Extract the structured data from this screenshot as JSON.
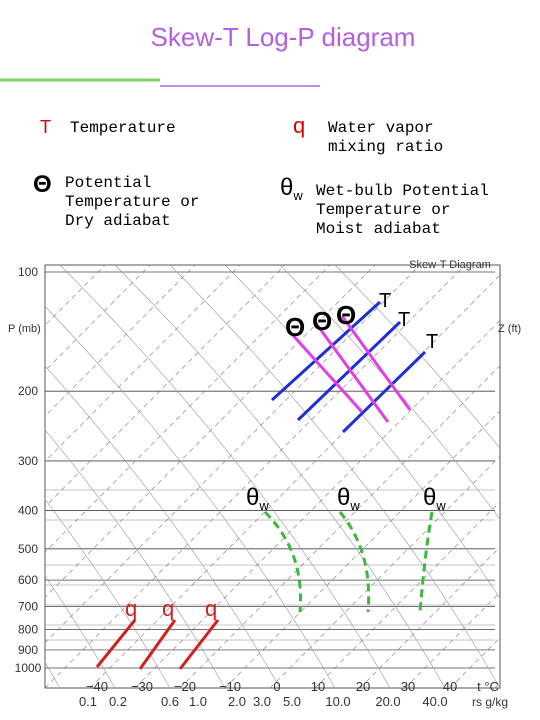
{
  "title": "Skew-T Log-P diagram",
  "legend": [
    {
      "symbol": "T",
      "label": "Temperature"
    },
    {
      "symbol": "q",
      "label": "Water vapor mixing ratio"
    },
    {
      "symbol": "Θ",
      "label": "Potential Temperature or Dry adiabat"
    },
    {
      "symbol": "θ",
      "subscript": "w",
      "label": "Wet-bulb Potential Temperature or Moist adiabat"
    }
  ],
  "diagram": {
    "title": "Skew-T Diagram",
    "y_axis_label": "P (mb)",
    "y2_axis_label": "Z (ft)",
    "pressure_levels": [
      100,
      200,
      300,
      400,
      500,
      600,
      700,
      800,
      900,
      1000
    ],
    "pressure_unit": "mb",
    "temperature_labels": [
      "−40",
      "−30",
      "−20",
      "−10",
      "0",
      "10",
      "20",
      "30",
      "40"
    ],
    "temperature_unit": "t °C",
    "mixing_ratio_labels": [
      "0.1",
      "0.2",
      "0.6",
      "1.0",
      "2.0",
      "3.0",
      "5.0",
      "10.0",
      "20.0",
      "40.0"
    ],
    "mixing_ratio_unit": "rs g/kg",
    "annotations": {
      "theta": [
        "Θ",
        "Θ",
        "Θ"
      ],
      "temperature": [
        "T",
        "T",
        "T"
      ],
      "theta_w": [
        {
          "symbol": "θ",
          "subscript": "w"
        },
        {
          "symbol": "θ",
          "subscript": "w"
        },
        {
          "symbol": "θ",
          "subscript": "w"
        }
      ],
      "q": [
        "q",
        "q",
        "q"
      ]
    }
  }
}
